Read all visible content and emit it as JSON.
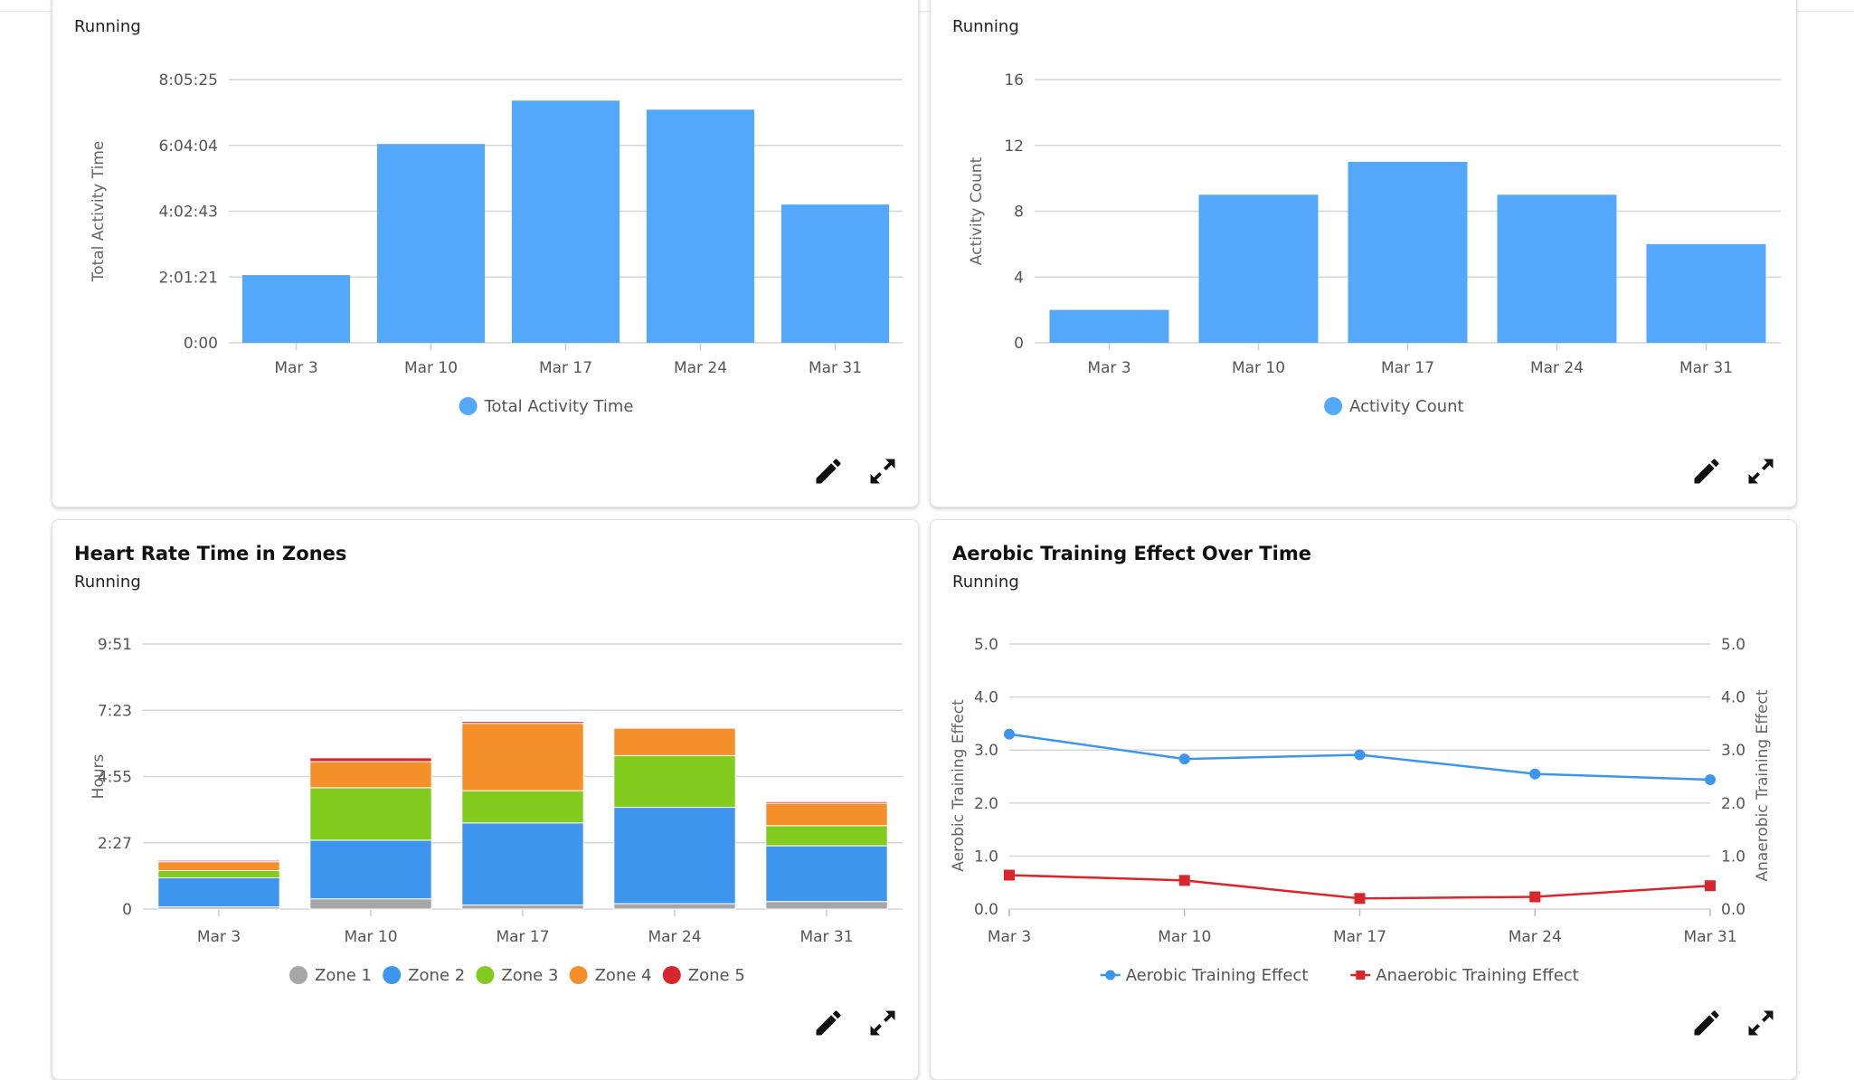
{
  "cards": [
    {
      "title": "",
      "subtitle": "Running",
      "chart_data": {
        "type": "bar",
        "categories": [
          "Mar 3",
          "Mar 10",
          "Mar 17",
          "Mar 24",
          "Mar 31"
        ],
        "series": [
          {
            "name": "Total Activity Time",
            "values_seconds": [
              7500,
              22000,
              26800,
              25800,
              15300
            ],
            "color": "#53a8fb"
          }
        ],
        "ylabel": "Total Activity Time",
        "ylim_seconds": [
          0,
          29125
        ],
        "yticks": [
          "0:00",
          "2:01:21",
          "4:02:43",
          "6:04:04",
          "8:05:25"
        ],
        "grid": true,
        "legend_position": "bottom"
      }
    },
    {
      "title": "",
      "subtitle": "Running",
      "chart_data": {
        "type": "bar",
        "categories": [
          "Mar 3",
          "Mar 10",
          "Mar 17",
          "Mar 24",
          "Mar 31"
        ],
        "series": [
          {
            "name": "Activity Count",
            "values": [
              2,
              9,
              11,
              9,
              6
            ],
            "color": "#53a8fb"
          }
        ],
        "ylabel": "Activity Count",
        "ylim": [
          0,
          16
        ],
        "yticks": [
          "0",
          "4",
          "8",
          "12",
          "16"
        ],
        "grid": true,
        "legend_position": "bottom"
      }
    },
    {
      "title": "Heart Rate Time in Zones",
      "subtitle": "Running",
      "chart_data": {
        "type": "bar",
        "stacked": true,
        "categories": [
          "Mar 3",
          "Mar 10",
          "Mar 17",
          "Mar 24",
          "Mar 31"
        ],
        "series": [
          {
            "name": "Zone 1",
            "values_hours": [
              0.08,
              0.38,
              0.15,
              0.2,
              0.28
            ],
            "color": "#a6a6a6"
          },
          {
            "name": "Zone 2",
            "values_hours": [
              1.08,
              2.18,
              3.05,
              3.58,
              2.07
            ],
            "color": "#3d95ee"
          },
          {
            "name": "Zone 3",
            "values_hours": [
              0.27,
              1.95,
              1.2,
              1.92,
              0.75
            ],
            "color": "#84cb1f"
          },
          {
            "name": "Zone 4",
            "values_hours": [
              0.33,
              0.97,
              2.5,
              1.02,
              0.83
            ],
            "color": "#f58f29"
          },
          {
            "name": "Zone 5",
            "values_hours": [
              0.05,
              0.14,
              0.07,
              0.0,
              0.06
            ],
            "color": "#d9262c"
          }
        ],
        "ylabel": "Hours",
        "ylim_hours": [
          0,
          9.85
        ],
        "yticks": [
          "0",
          "2:27",
          "4:55",
          "7:23",
          "9:51"
        ],
        "grid": true,
        "legend_position": "bottom"
      }
    },
    {
      "title": "Aerobic Training Effect Over Time",
      "subtitle": "Running",
      "chart_data": {
        "type": "line",
        "x": [
          "Mar 3",
          "Mar 10",
          "Mar 17",
          "Mar 24",
          "Mar 31"
        ],
        "series": [
          {
            "name": "Aerobic Training Effect",
            "values": [
              3.3,
              2.83,
              2.91,
              2.55,
              2.44
            ],
            "color": "#3d95ee",
            "marker": "circle"
          },
          {
            "name": "Anaerobic Training Effect",
            "values": [
              0.64,
              0.54,
              0.2,
              0.23,
              0.44
            ],
            "color": "#d9262c",
            "marker": "square"
          }
        ],
        "ylabel": "Aerobic Training Effect",
        "y2label": "Anaerobic Training Effect",
        "ylim": [
          0,
          5
        ],
        "yticks": [
          "0.0",
          "1.0",
          "2.0",
          "3.0",
          "4.0",
          "5.0"
        ],
        "grid": true,
        "legend_position": "bottom"
      }
    }
  ],
  "icons": {
    "edit": "pencil-icon",
    "expand": "expand-icon"
  }
}
